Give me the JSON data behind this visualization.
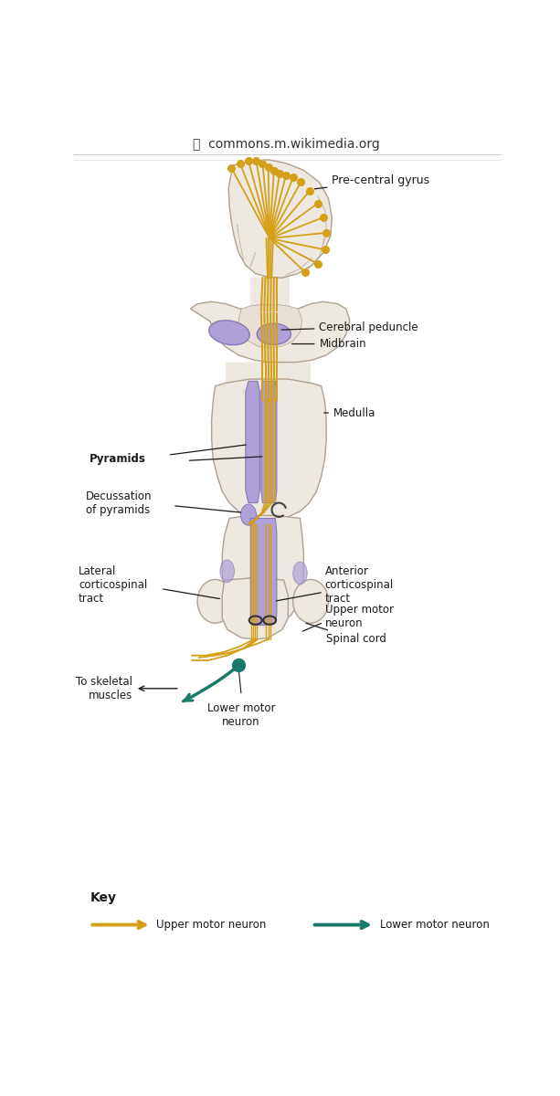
{
  "bg_color": "#ffffff",
  "annotation_color": "#1a1a1a",
  "upper_motor_color": "#D4A017",
  "lower_motor_color": "#1a7a6a",
  "anatomy_fill_light": "#ede8e0",
  "anatomy_fill": "#d8cfc4",
  "anatomy_stroke": "#b0a090",
  "purple_fill": "#b0a0d8",
  "purple_stroke": "#8878b8",
  "labels": {
    "pre_central_gyrus": "Pre-central gyrus",
    "cerebral_peduncle": "Cerebral peduncle",
    "midbrain": "Midbrain",
    "medulla": "Medulla",
    "pyramids": "Pyramids",
    "decussation": "Decussation\nof pyramids",
    "lateral_cst": "Lateral\ncorticospinal\ntract",
    "anterior_cst": "Anterior\ncorticospinal\ntract",
    "upper_motor": "Upper motor\nneuron",
    "spinal_cord": "Spinal cord",
    "to_skeletal": "To skeletal\nmuscles",
    "lower_motor_label": "Lower motor\nneuron",
    "key_title": "Key",
    "key_upper": "Upper motor neuron",
    "key_lower": "Lower motor neuron"
  }
}
